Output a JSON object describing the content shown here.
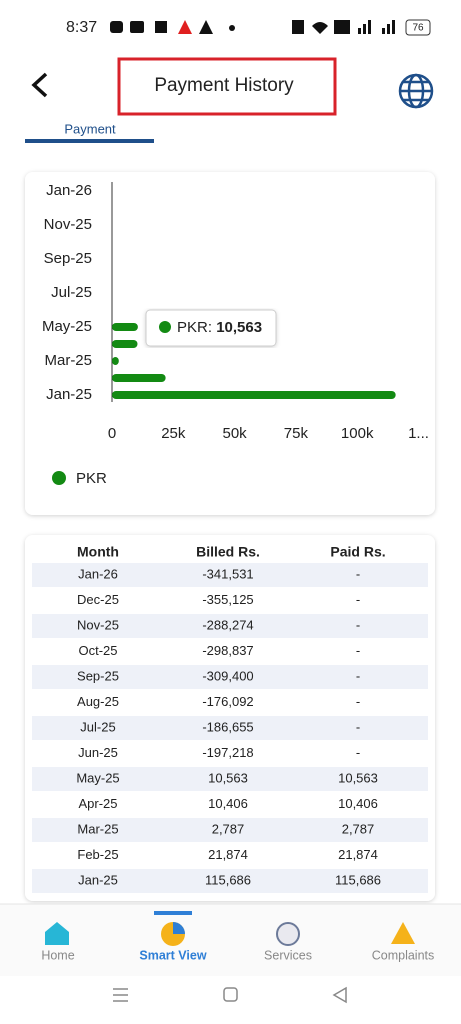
{
  "status_bar": {
    "time": "8:37",
    "battery": "76"
  },
  "header": {
    "title": "Payment History",
    "tab": "Payment"
  },
  "chart_data": {
    "type": "bar",
    "orientation": "horizontal",
    "categories": [
      "Jan-25",
      null,
      "Mar-25",
      null,
      "May-25",
      null,
      "Jul-25",
      null,
      "Sep-25",
      null,
      "Nov-25",
      null,
      "Jan-26"
    ],
    "series": [
      {
        "name": "PKR",
        "color": "#138a13",
        "values": [
          115686,
          21874,
          2787,
          10406,
          10563,
          null,
          null,
          null,
          null,
          null,
          null,
          null,
          null
        ]
      }
    ],
    "xlim": [
      0,
      125000
    ],
    "xticks": [
      0,
      {
        "value": 25000,
        "label": "25k"
      },
      {
        "value": 50000,
        "label": "50k"
      },
      {
        "value": 75000,
        "label": "75k"
      },
      {
        "value": 100000,
        "label": "100k"
      },
      {
        "value": 125000,
        "label": "1..."
      }
    ],
    "tooltip": {
      "label": "PKR:",
      "value": "10,563"
    }
  },
  "table": {
    "headers": [
      "Month",
      "Billed Rs.",
      "Paid Rs."
    ],
    "rows": [
      [
        "Jan-26",
        "-341,531",
        "-"
      ],
      [
        "Dec-25",
        "-355,125",
        "-"
      ],
      [
        "Nov-25",
        "-288,274",
        "-"
      ],
      [
        "Oct-25",
        "-298,837",
        "-"
      ],
      [
        "Sep-25",
        "-309,400",
        "-"
      ],
      [
        "Aug-25",
        "-176,092",
        "-"
      ],
      [
        "Jul-25",
        "-186,655",
        "-"
      ],
      [
        "Jun-25",
        "-197,218",
        "-"
      ],
      [
        "May-25",
        "10,563",
        "10,563"
      ],
      [
        "Apr-25",
        "10,406",
        "10,406"
      ],
      [
        "Mar-25",
        "2,787",
        "2,787"
      ],
      [
        "Feb-25",
        "21,874",
        "21,874"
      ],
      [
        "Jan-25",
        "115,686",
        "115,686"
      ]
    ]
  },
  "nav": [
    "Home",
    "Smart View",
    "Services",
    "Complaints"
  ]
}
